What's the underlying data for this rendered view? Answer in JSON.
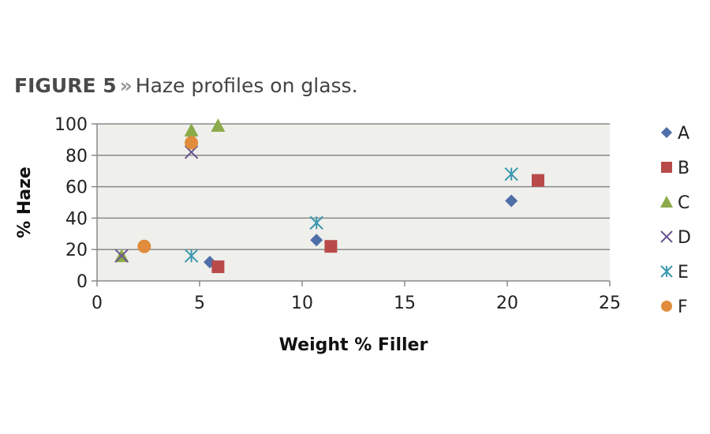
{
  "caption": {
    "label": "FIGURE 5",
    "separator": "»",
    "text": "Haze profiles on glass."
  },
  "chart_data": {
    "type": "scatter",
    "xlabel": "Weight % Filler",
    "ylabel": "% Haze",
    "xlim": [
      0,
      25
    ],
    "ylim": [
      0,
      100
    ],
    "xticks": [
      0,
      5,
      10,
      15,
      20,
      25
    ],
    "yticks": [
      0,
      20,
      40,
      60,
      80,
      100
    ],
    "grid": "horizontal",
    "legend_position": "right",
    "plot_background": "#efefeb",
    "series": [
      {
        "name": "A",
        "marker": "diamond",
        "color": "#4f6fa8",
        "points": [
          [
            5.5,
            12
          ],
          [
            10.7,
            26
          ],
          [
            20.2,
            51
          ]
        ]
      },
      {
        "name": "B",
        "marker": "square",
        "color": "#b84a4a",
        "points": [
          [
            5.9,
            9
          ],
          [
            11.4,
            22
          ],
          [
            21.5,
            64
          ]
        ]
      },
      {
        "name": "C",
        "marker": "triangle",
        "color": "#8bab4a",
        "points": [
          [
            1.2,
            16
          ],
          [
            4.6,
            96
          ],
          [
            5.9,
            99
          ]
        ]
      },
      {
        "name": "D",
        "marker": "x",
        "color": "#6a558f",
        "points": [
          [
            1.2,
            16
          ],
          [
            4.6,
            82
          ]
        ]
      },
      {
        "name": "E",
        "marker": "asterisk",
        "color": "#3a98b0",
        "points": [
          [
            4.6,
            16
          ],
          [
            10.7,
            37
          ],
          [
            20.2,
            68
          ]
        ]
      },
      {
        "name": "F",
        "marker": "circle",
        "color": "#e08c3c",
        "points": [
          [
            2.3,
            22
          ],
          [
            4.6,
            88
          ]
        ]
      }
    ]
  }
}
